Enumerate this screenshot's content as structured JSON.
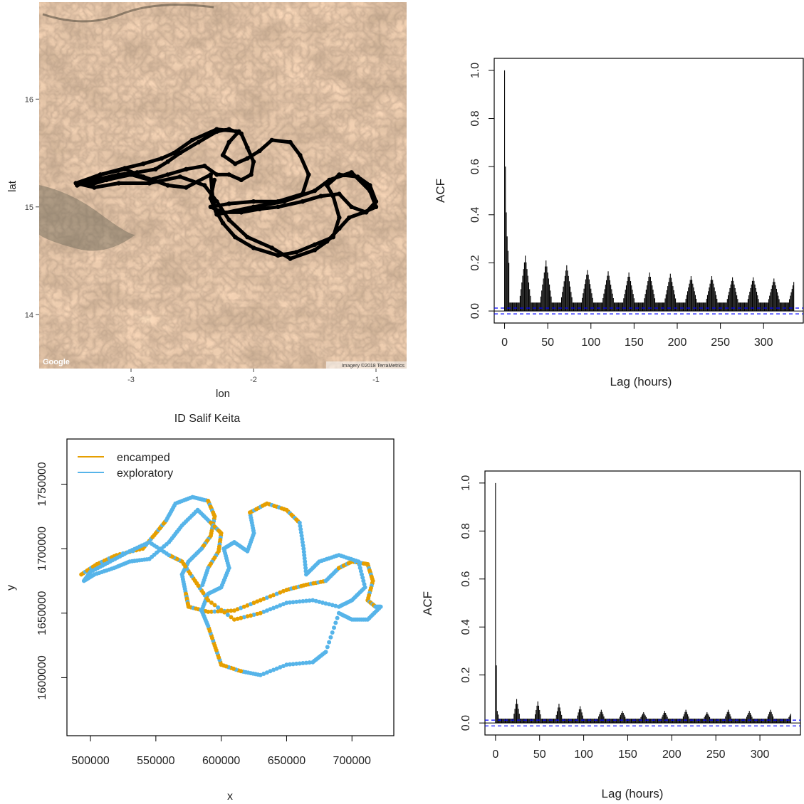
{
  "chart_data": [
    {
      "type": "line",
      "panel": "map",
      "xlabel": "lon",
      "ylabel": "lat",
      "caption": "ID Salif Keita",
      "xlim": [
        -3.75,
        -0.75
      ],
      "ylim": [
        13.5,
        16.9
      ],
      "xticks": [
        -3,
        -2,
        -1
      ],
      "yticks": [
        14,
        15,
        16
      ],
      "attribution_left": "Google",
      "attribution_right": "Imagery ©2018 TerraMetrics",
      "track_color": "#000000",
      "track": [
        [
          -3.44,
          15.2
        ],
        [
          -3.3,
          15.25
        ],
        [
          -3.1,
          15.3
        ],
        [
          -2.95,
          15.32
        ],
        [
          -2.8,
          15.35
        ],
        [
          -2.7,
          15.42
        ],
        [
          -2.6,
          15.5
        ],
        [
          -2.45,
          15.6
        ],
        [
          -2.3,
          15.7
        ],
        [
          -2.2,
          15.72
        ],
        [
          -2.1,
          15.68
        ],
        [
          -2.05,
          15.55
        ],
        [
          -2.0,
          15.42
        ],
        [
          -2.02,
          15.3
        ],
        [
          -2.1,
          15.25
        ],
        [
          -2.2,
          15.3
        ],
        [
          -2.3,
          15.3
        ],
        [
          -2.4,
          15.38
        ],
        [
          -2.55,
          15.35
        ],
        [
          -2.7,
          15.3
        ],
        [
          -2.85,
          15.25
        ],
        [
          -3.0,
          15.3
        ],
        [
          -3.2,
          15.25
        ],
        [
          -3.35,
          15.2
        ],
        [
          -3.25,
          15.3
        ],
        [
          -3.05,
          15.35
        ],
        [
          -2.9,
          15.28
        ],
        [
          -2.7,
          15.2
        ],
        [
          -2.55,
          15.18
        ],
        [
          -2.35,
          15.3
        ],
        [
          -2.33,
          15.05
        ],
        [
          -2.3,
          14.95
        ],
        [
          -2.25,
          14.85
        ],
        [
          -2.15,
          14.72
        ],
        [
          -2.0,
          14.62
        ],
        [
          -1.8,
          14.55
        ],
        [
          -1.65,
          14.58
        ],
        [
          -1.5,
          14.65
        ],
        [
          -1.35,
          14.72
        ],
        [
          -1.3,
          14.9
        ],
        [
          -1.35,
          15.1
        ],
        [
          -1.4,
          15.2
        ],
        [
          -1.3,
          15.3
        ],
        [
          -1.15,
          15.28
        ],
        [
          -1.05,
          15.2
        ],
        [
          -1.0,
          15.05
        ],
        [
          -1.08,
          14.95
        ],
        [
          -1.2,
          15.0
        ],
        [
          -1.3,
          15.12
        ],
        [
          -1.45,
          15.1
        ],
        [
          -1.6,
          15.05
        ],
        [
          -1.8,
          15.0
        ],
        [
          -1.95,
          14.98
        ],
        [
          -2.1,
          14.95
        ],
        [
          -2.25,
          14.95
        ],
        [
          -2.35,
          15.0
        ],
        [
          -2.2,
          15.03
        ],
        [
          -2.0,
          15.05
        ],
        [
          -1.8,
          15.05
        ],
        [
          -1.6,
          15.12
        ],
        [
          -1.55,
          15.3
        ],
        [
          -1.62,
          15.48
        ],
        [
          -1.7,
          15.6
        ],
        [
          -1.85,
          15.62
        ],
        [
          -1.95,
          15.52
        ],
        [
          -2.05,
          15.45
        ],
        [
          -2.15,
          15.4
        ],
        [
          -2.25,
          15.48
        ],
        [
          -2.2,
          15.6
        ],
        [
          -2.12,
          15.7
        ],
        [
          -2.3,
          15.72
        ],
        [
          -2.5,
          15.62
        ],
        [
          -2.65,
          15.5
        ],
        [
          -2.75,
          15.45
        ],
        [
          -2.9,
          15.4
        ],
        [
          -3.05,
          15.36
        ],
        [
          -3.25,
          15.3
        ],
        [
          -3.45,
          15.22
        ],
        [
          -3.3,
          15.18
        ],
        [
          -3.1,
          15.22
        ],
        [
          -2.85,
          15.22
        ],
        [
          -2.6,
          15.28
        ],
        [
          -2.4,
          15.2
        ],
        [
          -2.3,
          15.05
        ],
        [
          -2.2,
          14.88
        ],
        [
          -2.05,
          14.72
        ],
        [
          -1.85,
          14.62
        ],
        [
          -1.7,
          14.52
        ],
        [
          -1.5,
          14.6
        ],
        [
          -1.4,
          14.68
        ],
        [
          -1.3,
          14.8
        ],
        [
          -1.22,
          14.9
        ],
        [
          -1.1,
          14.95
        ],
        [
          -1.0,
          15.0
        ],
        [
          -1.05,
          15.15
        ],
        [
          -1.2,
          15.32
        ],
        [
          -1.38,
          15.25
        ],
        [
          -1.5,
          15.15
        ],
        [
          -1.75,
          15.05
        ],
        [
          -2.0,
          15.0
        ],
        [
          -2.3,
          14.93
        ],
        [
          -2.35,
          15.08
        ],
        [
          -2.32,
          15.25
        ]
      ]
    },
    {
      "type": "bar",
      "panel": "acf",
      "xlabel": "Lag (hours)",
      "ylabel": "ACF",
      "xlim": [
        -12,
        346
      ],
      "ylim": [
        -0.05,
        1.05
      ],
      "xticks": [
        0,
        50,
        100,
        150,
        200,
        250,
        300
      ],
      "yticks": [
        0.0,
        0.2,
        0.4,
        0.6,
        0.8,
        1.0
      ],
      "ytick_labels": [
        "0.0",
        "0.2",
        "0.4",
        "0.6",
        "0.8",
        "1.0"
      ],
      "confidence_bound": 0.012,
      "bound_color": "#0000ff",
      "max_lag": 335,
      "lag_values": {
        "0": 1.0,
        "1": 0.6,
        "2": 0.41,
        "3": 0.31,
        "4": 0.25,
        "5": 0.2
      },
      "floor": 0.035,
      "peak_lags": [
        24,
        48,
        72,
        96,
        120,
        144,
        168,
        192,
        216,
        240,
        264,
        288,
        312,
        336
      ],
      "peak_heights": [
        0.23,
        0.21,
        0.19,
        0.17,
        0.165,
        0.16,
        0.16,
        0.155,
        0.145,
        0.145,
        0.14,
        0.14,
        0.135,
        0.135
      ],
      "peak_halfwidth": 6
    },
    {
      "type": "scatter",
      "panel": "states",
      "xlabel": "x",
      "ylabel": "y",
      "xlim": [
        482000,
        732000
      ],
      "ylim": [
        1555000,
        1785000
      ],
      "xticks": [
        500000,
        550000,
        600000,
        650000,
        700000
      ],
      "xtick_labels": [
        "500000",
        "550000",
        "600000",
        "650000",
        "700000"
      ],
      "yticks": [
        1600000,
        1650000,
        1700000,
        1750000
      ],
      "ytick_labels": [
        "1600000",
        "1650000",
        "1700000",
        "1750000"
      ],
      "legend": [
        {
          "label": "encamped",
          "color": "#e69f00"
        },
        {
          "label": "exploratory",
          "color": "#56b4e9"
        }
      ],
      "legend_position": "top-left",
      "path": [
        [
          493000,
          1680000
        ],
        [
          505000,
          1688000
        ],
        [
          520000,
          1695000
        ],
        [
          540000,
          1700000
        ],
        [
          550000,
          1712000
        ],
        [
          558000,
          1722000
        ],
        [
          565000,
          1735000
        ],
        [
          578000,
          1740000
        ],
        [
          590000,
          1737000
        ],
        [
          595000,
          1725000
        ],
        [
          592000,
          1710000
        ],
        [
          585000,
          1700000
        ],
        [
          575000,
          1690000
        ],
        [
          570000,
          1680000
        ],
        [
          573000,
          1665000
        ],
        [
          575000,
          1655000
        ],
        [
          590000,
          1651000
        ],
        [
          610000,
          1652000
        ],
        [
          630000,
          1660000
        ],
        [
          650000,
          1668000
        ],
        [
          665000,
          1672000
        ],
        [
          680000,
          1675000
        ],
        [
          690000,
          1685000
        ],
        [
          700000,
          1690000
        ],
        [
          712000,
          1688000
        ],
        [
          716000,
          1675000
        ],
        [
          712000,
          1660000
        ],
        [
          718000,
          1655000
        ],
        [
          722000,
          1655000
        ],
        [
          712000,
          1645000
        ],
        [
          700000,
          1645000
        ],
        [
          690000,
          1650000
        ],
        [
          680000,
          1620000
        ],
        [
          670000,
          1612000
        ],
        [
          650000,
          1610000
        ],
        [
          630000,
          1602000
        ],
        [
          615000,
          1605000
        ],
        [
          600000,
          1610000
        ],
        [
          595000,
          1625000
        ],
        [
          590000,
          1640000
        ],
        [
          585000,
          1652000
        ],
        [
          590000,
          1665000
        ],
        [
          600000,
          1670000
        ],
        [
          606000,
          1685000
        ],
        [
          602000,
          1700000
        ],
        [
          610000,
          1705000
        ],
        [
          620000,
          1698000
        ],
        [
          625000,
          1712000
        ],
        [
          622000,
          1728000
        ],
        [
          635000,
          1735000
        ],
        [
          650000,
          1730000
        ],
        [
          660000,
          1720000
        ],
        [
          663000,
          1700000
        ],
        [
          665000,
          1680000
        ],
        [
          675000,
          1690000
        ],
        [
          690000,
          1695000
        ],
        [
          705000,
          1690000
        ],
        [
          710000,
          1670000
        ],
        [
          700000,
          1660000
        ],
        [
          690000,
          1655000
        ],
        [
          670000,
          1660000
        ],
        [
          650000,
          1658000
        ],
        [
          630000,
          1650000
        ],
        [
          610000,
          1645000
        ],
        [
          590000,
          1660000
        ],
        [
          580000,
          1675000
        ],
        [
          570000,
          1690000
        ],
        [
          560000,
          1695000
        ],
        [
          545000,
          1705000
        ],
        [
          530000,
          1698000
        ],
        [
          515000,
          1690000
        ],
        [
          500000,
          1682000
        ],
        [
          495000,
          1675000
        ],
        [
          503000,
          1680000
        ],
        [
          518000,
          1685000
        ],
        [
          530000,
          1690000
        ],
        [
          545000,
          1692000
        ],
        [
          560000,
          1705000
        ],
        [
          570000,
          1718000
        ],
        [
          582000,
          1730000
        ],
        [
          592000,
          1720000
        ],
        [
          600000,
          1712000
        ],
        [
          598000,
          1698000
        ],
        [
          590000,
          1685000
        ],
        [
          585000,
          1670000
        ]
      ],
      "encamped_ranges": [
        [
          0,
          4
        ],
        [
          8,
          10
        ],
        [
          14,
          20
        ],
        [
          22,
          26
        ],
        [
          36,
          38
        ],
        [
          48,
          50
        ],
        [
          62,
          66
        ],
        [
          80,
          82
        ]
      ]
    },
    {
      "type": "bar",
      "panel": "acf",
      "xlabel": "Lag (hours)",
      "ylabel": "ACF",
      "xlim": [
        -12,
        346
      ],
      "ylim": [
        -0.05,
        1.05
      ],
      "xticks": [
        0,
        50,
        100,
        150,
        200,
        250,
        300
      ],
      "yticks": [
        0.0,
        0.2,
        0.4,
        0.6,
        0.8,
        1.0
      ],
      "ytick_labels": [
        "0.0",
        "0.2",
        "0.4",
        "0.6",
        "0.8",
        "1.0"
      ],
      "confidence_bound": 0.012,
      "bound_color": "#0000ff",
      "max_lag": 335,
      "lag_values": {
        "0": 1.0,
        "1": 0.24,
        "2": 0.05,
        "3": 0.035
      },
      "floor": 0.018,
      "peak_lags": [
        24,
        48,
        72,
        96,
        120,
        144,
        168,
        192,
        216,
        240,
        264,
        288,
        312,
        336
      ],
      "peak_heights": [
        0.1,
        0.09,
        0.08,
        0.07,
        0.055,
        0.05,
        0.045,
        0.05,
        0.055,
        0.045,
        0.055,
        0.05,
        0.055,
        0.045
      ],
      "peak_halfwidth": 3
    }
  ]
}
